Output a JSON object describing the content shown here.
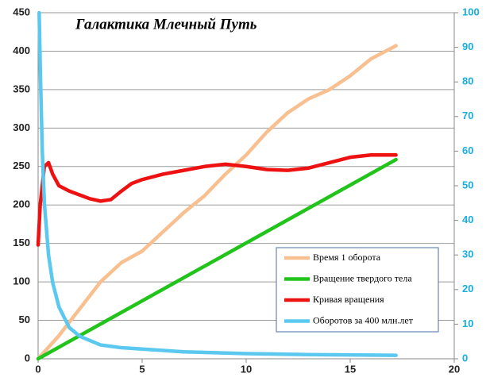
{
  "chart_data": {
    "type": "line",
    "title": "Галактика Млечный Путь",
    "xlim": [
      0,
      20
    ],
    "xticks": [
      0,
      5,
      10,
      15,
      20
    ],
    "ylim": [
      0,
      450
    ],
    "yticks": [
      0,
      50,
      100,
      150,
      200,
      250,
      300,
      350,
      400,
      450
    ],
    "y2lim": [
      0,
      100
    ],
    "y2ticks": [
      0,
      10,
      20,
      30,
      40,
      50,
      60,
      70,
      80,
      90,
      100
    ],
    "grid": true,
    "legend": "lower right",
    "series": [
      {
        "name": "Время 1 оборота",
        "color": "#f8c090",
        "x": [
          0,
          1,
          2,
          3,
          4,
          5,
          6,
          7,
          8,
          9,
          10,
          11,
          12,
          13,
          14,
          15,
          16,
          17.2
        ],
        "values": [
          0,
          30,
          65,
          100,
          125,
          140,
          165,
          190,
          212,
          240,
          265,
          295,
          320,
          338,
          350,
          368,
          390,
          407
        ]
      },
      {
        "name": "Вращение твердого тела",
        "color": "#22c41b",
        "x": [
          0,
          17.2
        ],
        "values": [
          0,
          259
        ]
      },
      {
        "name": "Кривая вращения",
        "color": "#ee1111",
        "x": [
          0,
          0.1,
          0.3,
          0.5,
          0.7,
          1,
          1.5,
          2,
          2.5,
          3,
          3.5,
          4,
          4.5,
          5,
          6,
          7,
          8,
          9,
          10,
          11,
          12,
          13,
          14,
          15,
          16,
          17.2
        ],
        "values": [
          148,
          200,
          250,
          255,
          240,
          225,
          218,
          213,
          208,
          205,
          207,
          218,
          228,
          233,
          240,
          245,
          250,
          253,
          250,
          246,
          245,
          248,
          255,
          262,
          265,
          265
        ]
      },
      {
        "name": "Оборотов за 400 млн.лет",
        "color": "#5bc8f0",
        "axis": "y2",
        "x": [
          0.05,
          0.1,
          0.2,
          0.3,
          0.5,
          0.7,
          1,
          1.5,
          2,
          3,
          4,
          5,
          7,
          10,
          13,
          17.2
        ],
        "values": [
          100,
          85,
          60,
          45,
          30,
          22,
          15,
          9,
          6.5,
          4,
          3.2,
          2.8,
          2,
          1.5,
          1.2,
          1
        ]
      }
    ]
  }
}
